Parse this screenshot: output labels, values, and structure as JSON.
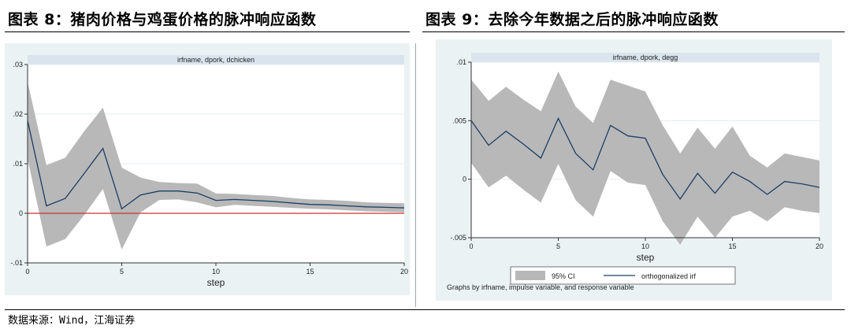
{
  "fig8": {
    "title": "图表 8：猪肉价格与鸡蛋价格的脉冲响应函数"
  },
  "fig9": {
    "title": "图表 9：去除今年数据之后的脉冲响应函数"
  },
  "source": "数据来源：Wind，江海证券",
  "chart_data": [
    {
      "type": "line",
      "panel_title": "irfname, dpork, dchicken",
      "xlabel": "step",
      "xlim": [
        0,
        20
      ],
      "ylim": [
        -0.01,
        0.03
      ],
      "xticks": [
        0,
        5,
        10,
        15,
        20
      ],
      "yticks": [
        -0.01,
        0,
        0.01,
        0.02,
        0.03
      ],
      "ytick_labels": [
        "-.01",
        "0",
        ".01",
        ".02",
        ".03"
      ],
      "zero_line_color": "#cc3333",
      "series": [
        {
          "role": "orthogonalized irf",
          "color": "#1a3e66",
          "x": [
            0,
            1,
            2,
            3,
            4,
            5,
            6,
            7,
            8,
            9,
            10,
            11,
            12,
            13,
            14,
            15,
            16,
            17,
            18,
            19,
            20
          ],
          "values": [
            0.0187,
            0.0015,
            0.003,
            0.008,
            0.0131,
            0.0009,
            0.0037,
            0.0045,
            0.0045,
            0.0041,
            0.0026,
            0.0028,
            0.0026,
            0.0024,
            0.0021,
            0.0018,
            0.0017,
            0.0015,
            0.0013,
            0.0012,
            0.0011
          ]
        },
        {
          "role": "ci_upper",
          "x": [
            0,
            1,
            2,
            3,
            4,
            5,
            6,
            7,
            8,
            9,
            10,
            11,
            12,
            13,
            14,
            15,
            16,
            17,
            18,
            19,
            20
          ],
          "values": [
            0.0265,
            0.0097,
            0.0112,
            0.0165,
            0.0213,
            0.0092,
            0.0072,
            0.0063,
            0.0061,
            0.006,
            0.004,
            0.0039,
            0.0037,
            0.0035,
            0.0031,
            0.0028,
            0.0027,
            0.0025,
            0.0022,
            0.0021,
            0.002
          ]
        },
        {
          "role": "ci_lower",
          "x": [
            0,
            1,
            2,
            3,
            4,
            5,
            6,
            7,
            8,
            9,
            10,
            11,
            12,
            13,
            14,
            15,
            16,
            17,
            18,
            19,
            20
          ],
          "values": [
            0.011,
            -0.0067,
            -0.0052,
            -0.0004,
            0.0049,
            -0.0073,
            0.0002,
            0.0027,
            0.0028,
            0.0022,
            0.0012,
            0.0017,
            0.0015,
            0.0013,
            0.0011,
            0.0009,
            0.0008,
            0.0006,
            0.0004,
            0.0003,
            0.0002
          ]
        }
      ]
    },
    {
      "type": "line",
      "panel_title": "irfname, dpork, degg",
      "xlabel": "step",
      "xlim": [
        0,
        20
      ],
      "ylim": [
        -0.005,
        0.01
      ],
      "xticks": [
        0,
        5,
        10,
        15,
        20
      ],
      "yticks": [
        -0.005,
        0,
        0.005,
        0.01
      ],
      "ytick_labels": [
        "-.005",
        "0",
        ".005",
        ".01"
      ],
      "legend": [
        "95% CI",
        "orthogonalized irf"
      ],
      "note": "Graphs by irfname, impulse variable, and response variable",
      "series": [
        {
          "role": "orthogonalized irf",
          "color": "#1a3e66",
          "x": [
            0,
            1,
            2,
            3,
            4,
            5,
            6,
            7,
            8,
            9,
            10,
            11,
            12,
            13,
            14,
            15,
            16,
            17,
            18,
            19,
            20
          ],
          "values": [
            0.005,
            0.0029,
            0.0041,
            0.003,
            0.0018,
            0.0052,
            0.0022,
            0.0008,
            0.0046,
            0.0037,
            0.0035,
            0.0004,
            -0.0017,
            0.0005,
            -0.0012,
            0.0006,
            -0.0002,
            -0.0013,
            -0.0002,
            -0.0004,
            -0.0007
          ]
        },
        {
          "role": "ci_upper",
          "x": [
            0,
            1,
            2,
            3,
            4,
            5,
            6,
            7,
            8,
            9,
            10,
            11,
            12,
            13,
            14,
            15,
            16,
            17,
            18,
            19,
            20
          ],
          "values": [
            0.0085,
            0.0067,
            0.0079,
            0.0068,
            0.0058,
            0.0092,
            0.0062,
            0.0048,
            0.0085,
            0.008,
            0.0075,
            0.0046,
            0.0022,
            0.0044,
            0.0026,
            0.0045,
            0.002,
            0.001,
            0.0022,
            0.0019,
            0.0016
          ]
        },
        {
          "role": "ci_lower",
          "x": [
            0,
            1,
            2,
            3,
            4,
            5,
            6,
            7,
            8,
            9,
            10,
            11,
            12,
            13,
            14,
            15,
            16,
            17,
            18,
            19,
            20
          ],
          "values": [
            0.0014,
            -0.0007,
            0.0003,
            -0.0009,
            -0.002,
            0.0013,
            -0.0018,
            -0.0032,
            0.0007,
            -0.0003,
            -0.0005,
            -0.0036,
            -0.0056,
            -0.0032,
            -0.005,
            -0.0032,
            -0.0027,
            -0.0036,
            -0.0024,
            -0.0027,
            -0.0029
          ]
        }
      ]
    }
  ]
}
